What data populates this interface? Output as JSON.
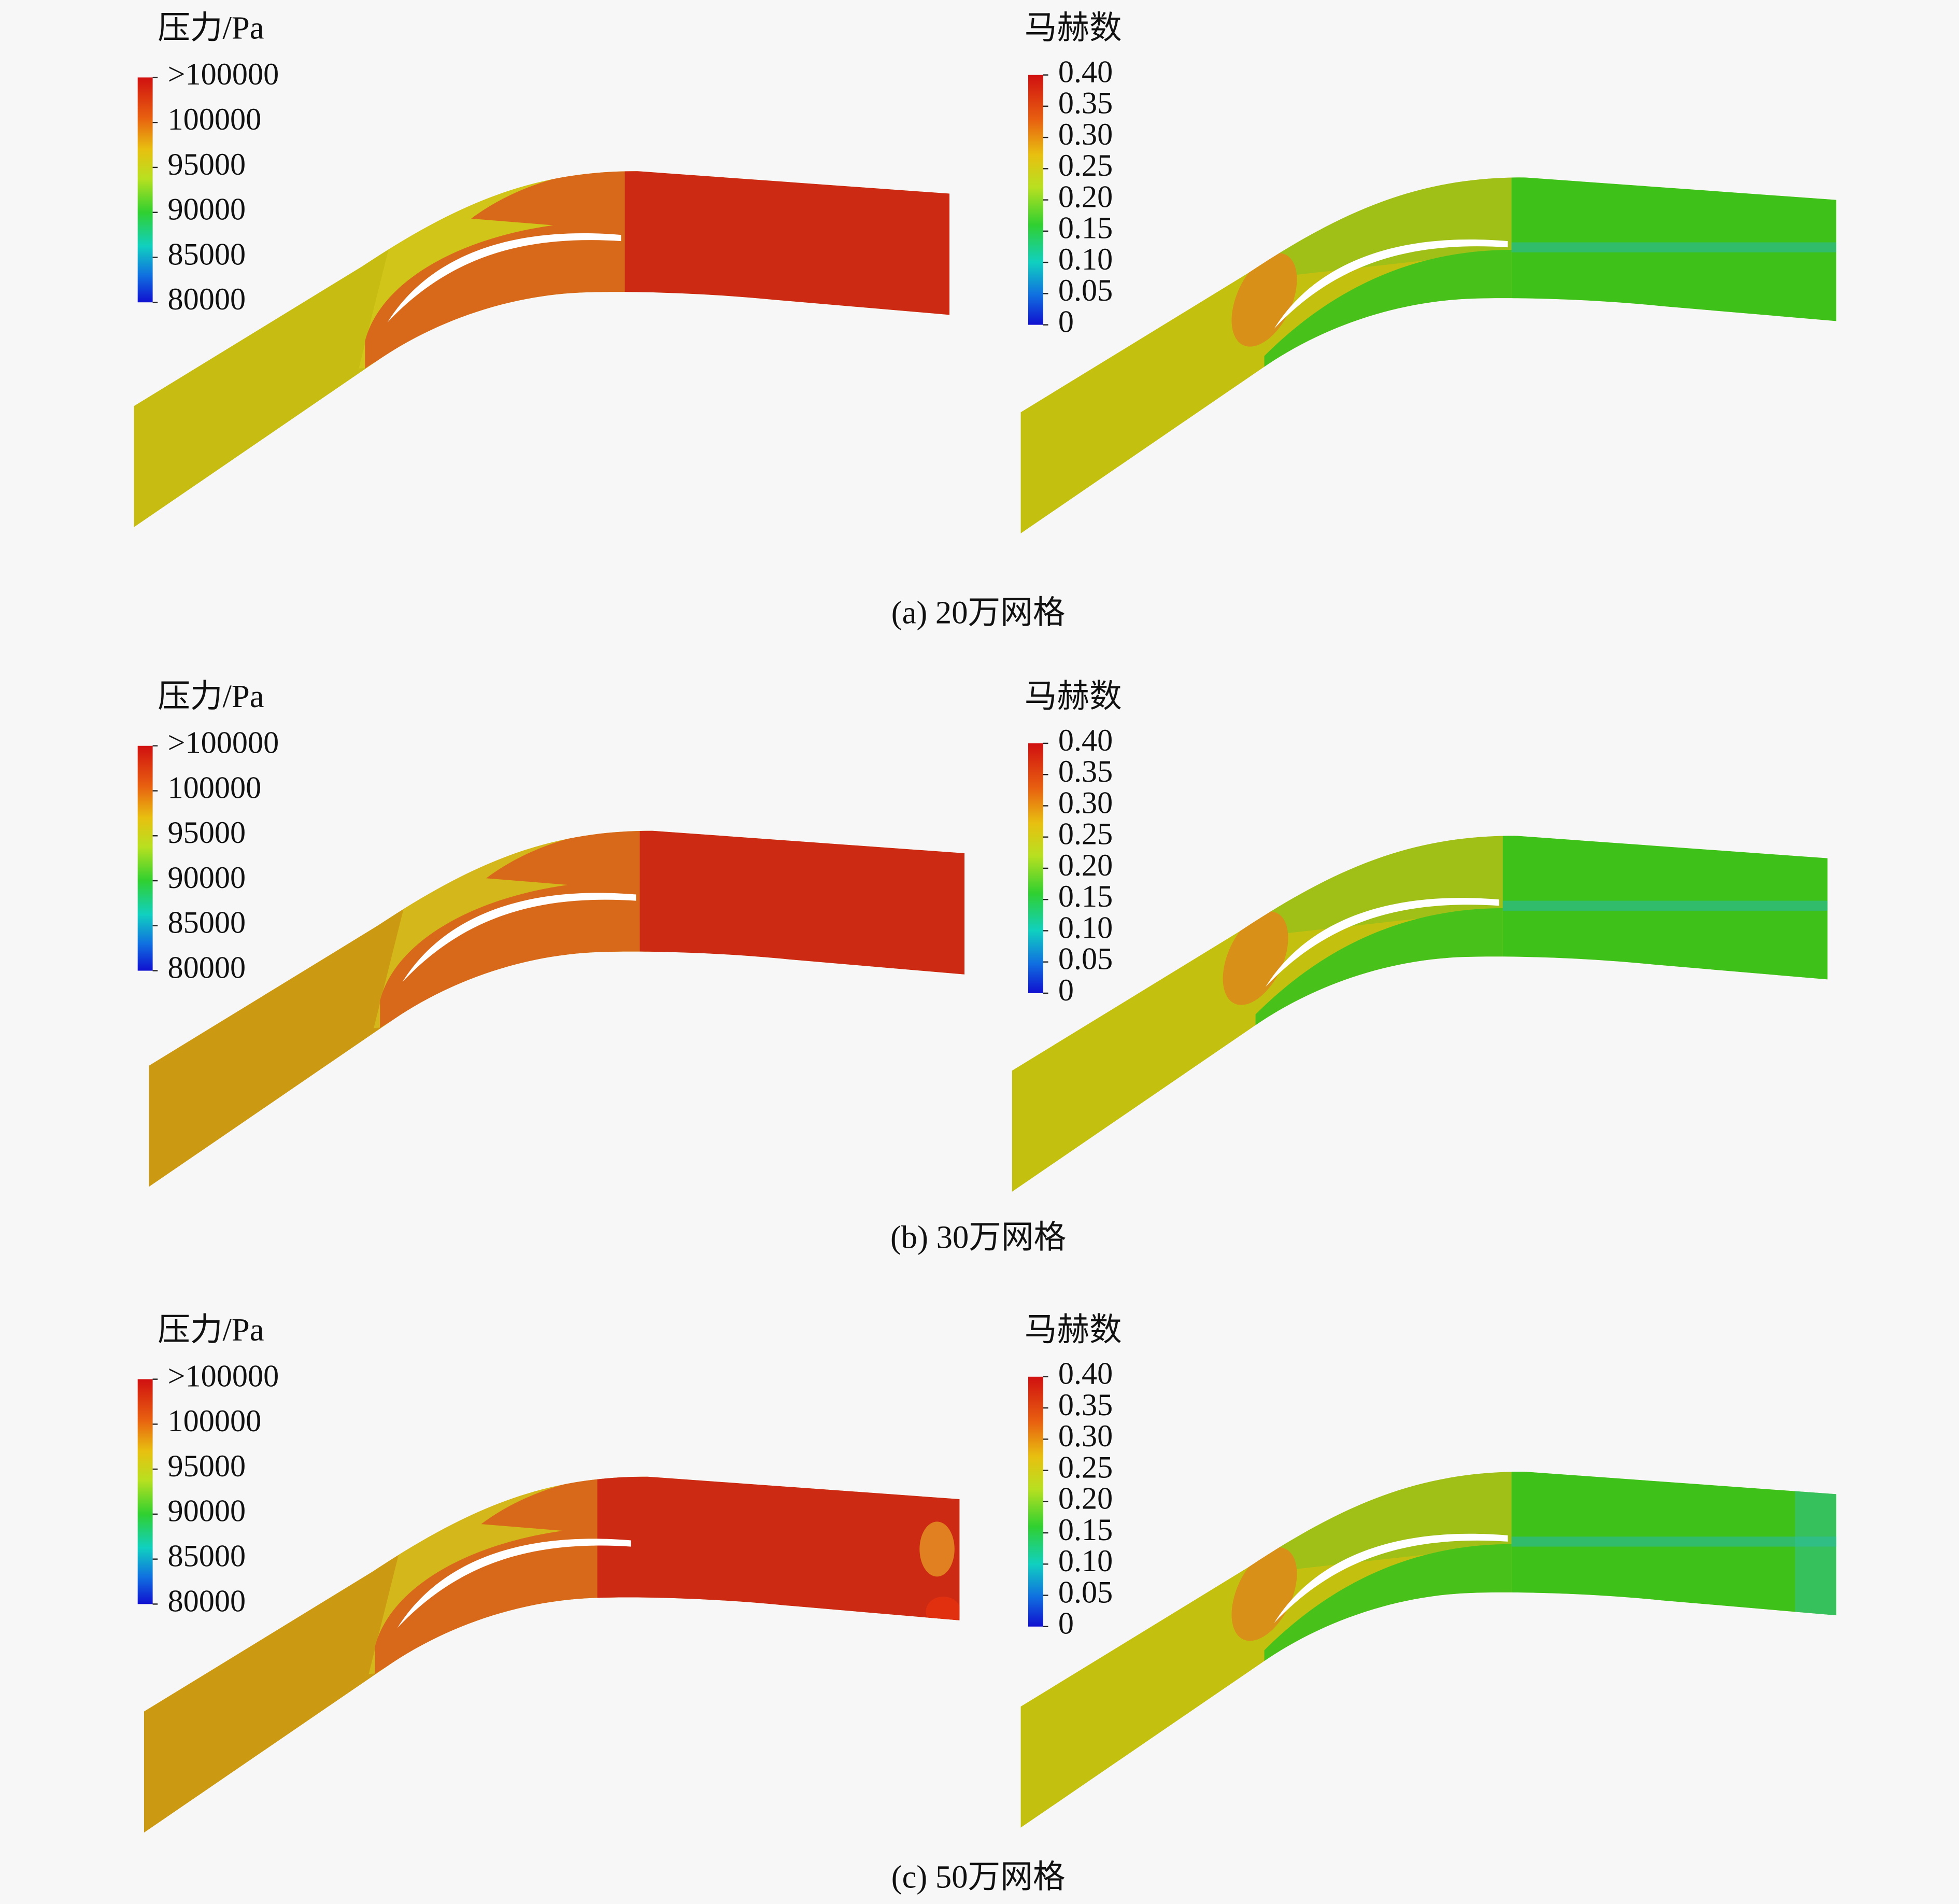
{
  "figure": {
    "panels": [
      {
        "pressure": {
          "title": "压力/Pa",
          "labels": [
            ">100000",
            "100000",
            "95000",
            "90000",
            "85000",
            "80000"
          ]
        },
        "mach": {
          "title": "马赫数",
          "labels": [
            "0.40",
            "0.35",
            "0.30",
            "0.25",
            "0.20",
            "0.15",
            "0.10",
            "0.05",
            "0"
          ]
        },
        "caption": "(a) 20万网格"
      },
      {
        "pressure": {
          "title": "压力/Pa",
          "labels": [
            ">100000",
            "100000",
            "95000",
            "90000",
            "85000",
            "80000"
          ]
        },
        "mach": {
          "title": "马赫数",
          "labels": [
            "0.40",
            "0.35",
            "0.30",
            "0.25",
            "0.20",
            "0.15",
            "0.10",
            "0.05",
            "0"
          ]
        },
        "caption": "(b) 30万网格"
      },
      {
        "pressure": {
          "title": "压力/Pa",
          "labels": [
            ">100000",
            "100000",
            "95000",
            "90000",
            "85000",
            "80000"
          ]
        },
        "mach": {
          "title": "马赫数",
          "labels": [
            "0.40",
            "0.35",
            "0.30",
            "0.25",
            "0.20",
            "0.15",
            "0.10",
            "0.05",
            "0"
          ]
        },
        "caption": "(c) 50万网格"
      }
    ]
  }
}
